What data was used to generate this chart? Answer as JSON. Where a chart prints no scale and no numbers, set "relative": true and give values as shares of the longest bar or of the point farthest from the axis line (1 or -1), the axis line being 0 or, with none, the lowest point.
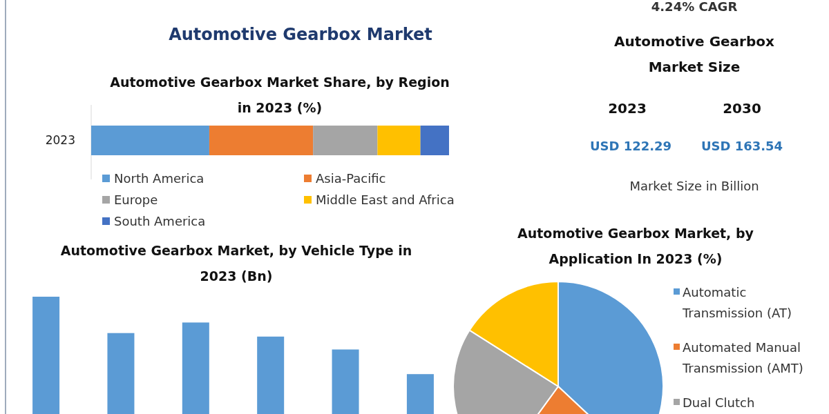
{
  "chart_data": [
    {
      "type": "bar",
      "title": "Automotive Gearbox Market",
      "subtitle": "Automotive Gearbox Market Share, by Region in 2023 (%)",
      "orientation": "horizontal",
      "stacked": true,
      "relative": true,
      "categories": [
        "2023"
      ],
      "legend": "bottom",
      "series": [
        {
          "name": "North America",
          "color": "#5b9bd5",
          "values": [
            0.33
          ]
        },
        {
          "name": "Asia-Pacific",
          "color": "#ed7d31",
          "values": [
            0.29
          ]
        },
        {
          "name": "Europe",
          "color": "#a5a5a5",
          "values": [
            0.18
          ]
        },
        {
          "name": "Middle East and Africa",
          "color": "#ffc000",
          "values": [
            0.12
          ]
        },
        {
          "name": "South America",
          "color": "#4472c4",
          "values": [
            0.08
          ]
        }
      ]
    },
    {
      "type": "other",
      "title": "Automotive Gearbox Market Size",
      "annotations": [
        "4.24% CAGR",
        "2023",
        "2030",
        "USD 122.29",
        "USD 163.54",
        "Market Size in Billion"
      ]
    },
    {
      "type": "bar",
      "title": "Automotive Gearbox Market, by Vehicle Type in 2023 (Bn)",
      "relative": true,
      "categories": [
        null,
        null,
        null,
        null,
        null,
        null
      ],
      "color": "#5b9bd5",
      "values": [
        1,
        0.69,
        0.78,
        0.66,
        0.55,
        0.34
      ]
    },
    {
      "type": "pie",
      "title": "Automotive Gearbox Market, by Application In 2023 (%)",
      "legend": "right",
      "categories": [
        "Automatic Transmission (AT)",
        "Automated Manual Transmission (AMT)",
        "Dual Clutch",
        null
      ],
      "values": [
        37,
        23,
        24,
        16
      ],
      "colors": [
        "#5b9bd5",
        "#ed7d31",
        "#a5a5a5",
        "#ffc000"
      ]
    }
  ]
}
